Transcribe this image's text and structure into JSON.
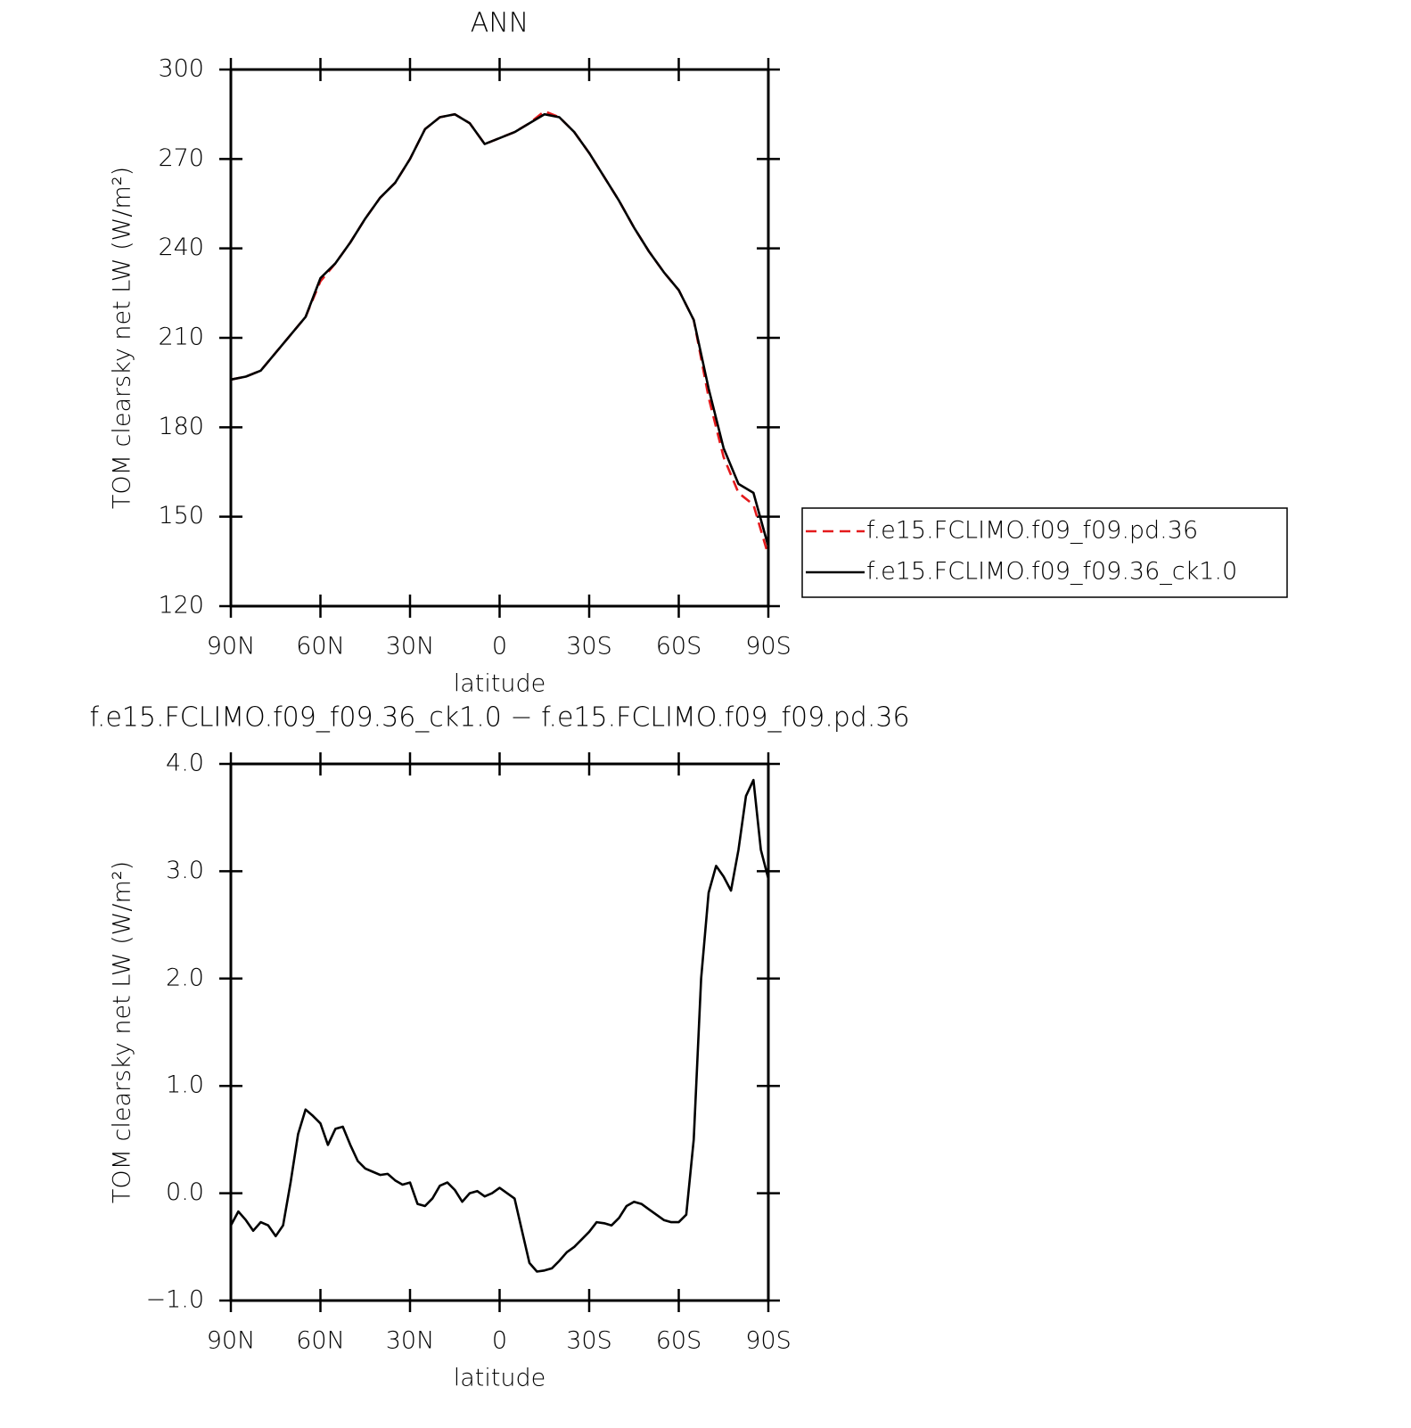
{
  "chart_data": [
    {
      "type": "line",
      "title": "ANN",
      "xlabel": "latitude",
      "ylabel": "TOM clearsky net LW (W/m²)",
      "x": [
        90,
        85,
        80,
        75,
        70,
        65,
        60,
        55,
        50,
        45,
        40,
        35,
        30,
        25,
        20,
        15,
        10,
        5,
        0,
        -5,
        -10,
        -15,
        -20,
        -25,
        -30,
        -35,
        -40,
        -45,
        -50,
        -55,
        -60,
        -65,
        -70,
        -75,
        -80,
        -85,
        -90
      ],
      "series": [
        {
          "name": "f.e15.FCLIMO.f09_f09.pd.36",
          "color": "#e41a1c",
          "style": "dashed",
          "values": [
            196,
            197,
            199,
            205,
            211,
            217,
            229,
            235,
            242,
            250,
            257,
            262,
            270,
            280,
            284,
            285,
            282,
            275,
            277,
            279,
            282,
            286,
            284,
            279,
            272,
            264,
            256,
            247,
            239,
            232,
            226,
            216,
            190,
            170,
            158,
            154,
            137
          ]
        },
        {
          "name": "f.e15.FCLIMO.f09_f09.36_ck1.0",
          "color": "#000000",
          "style": "solid",
          "values": [
            196,
            197,
            199,
            205,
            211,
            217,
            230,
            235,
            242,
            250,
            257,
            262,
            270,
            280,
            284,
            285,
            282,
            275,
            277,
            279,
            282,
            285,
            284,
            279,
            272,
            264,
            256,
            247,
            239,
            232,
            226,
            216,
            193,
            173,
            161,
            158,
            140
          ]
        }
      ],
      "xlim": [
        90,
        -90
      ],
      "xticks": [
        {
          "value": 90,
          "label": "90N"
        },
        {
          "value": 60,
          "label": "60N"
        },
        {
          "value": 30,
          "label": "30N"
        },
        0,
        {
          "value": -30,
          "label": "30S"
        },
        {
          "value": -60,
          "label": "60S"
        },
        {
          "value": -90,
          "label": "90S"
        }
      ],
      "ylim": [
        120,
        300
      ],
      "yticks": [
        120,
        150,
        180,
        210,
        240,
        270,
        300
      ],
      "legend": "outside-right"
    },
    {
      "type": "line",
      "title": "f.e15.FCLIMO.f09_f09.36_ck1.0 − f.e15.FCLIMO.f09_f09.pd.36",
      "xlabel": "latitude",
      "ylabel": "TOM clearsky net LW (W/m²)",
      "x": [
        90,
        87.5,
        85,
        82.5,
        80,
        77.5,
        75,
        72.5,
        70,
        67.5,
        65,
        62.5,
        60,
        57.5,
        55,
        52.5,
        50,
        47.5,
        45,
        42.5,
        40,
        37.5,
        35,
        32.5,
        30,
        27.5,
        25,
        22.5,
        20,
        17.5,
        15,
        12.5,
        10,
        7.5,
        5,
        2.5,
        0,
        -2.5,
        -5,
        -7.5,
        -10,
        -12.5,
        -15,
        -17.5,
        -20,
        -22.5,
        -25,
        -27.5,
        -30,
        -32.5,
        -35,
        -37.5,
        -40,
        -42.5,
        -45,
        -47.5,
        -50,
        -52.5,
        -55,
        -57.5,
        -60,
        -62.5,
        -65,
        -67.5,
        -70,
        -72.5,
        -75,
        -77.5,
        -80,
        -82.5,
        -85,
        -87.5,
        -90
      ],
      "series": [
        {
          "color": "#000000",
          "style": "solid",
          "values": [
            -0.3,
            -0.17,
            -0.25,
            -0.35,
            -0.27,
            -0.3,
            -0.4,
            -0.3,
            0.1,
            0.55,
            0.78,
            0.72,
            0.65,
            0.45,
            0.6,
            0.62,
            0.45,
            0.3,
            0.23,
            0.2,
            0.17,
            0.18,
            0.12,
            0.08,
            0.1,
            -0.1,
            -0.12,
            -0.05,
            0.07,
            0.1,
            0.03,
            -0.08,
            0,
            0.02,
            -0.03,
            0,
            0.05,
            0,
            -0.05,
            -0.35,
            -0.65,
            -0.73,
            -0.72,
            -0.7,
            -0.63,
            -0.55,
            -0.5,
            -0.43,
            -0.36,
            -0.27,
            -0.28,
            -0.3,
            -0.23,
            -0.12,
            -0.08,
            -0.1,
            -0.15,
            -0.2,
            -0.25,
            -0.27,
            -0.27,
            -0.2,
            0.5,
            2.0,
            2.8,
            3.05,
            2.95,
            2.82,
            3.2,
            3.7,
            3.85,
            3.2,
            2.93
          ]
        }
      ],
      "xlim": [
        90,
        -90
      ],
      "xticks": [
        {
          "value": 90,
          "label": "90N"
        },
        {
          "value": 60,
          "label": "60N"
        },
        {
          "value": 30,
          "label": "30N"
        },
        0,
        {
          "value": -30,
          "label": "30S"
        },
        {
          "value": -60,
          "label": "60S"
        },
        {
          "value": -90,
          "label": "90S"
        }
      ],
      "ylim": [
        -1,
        4
      ],
      "yticks": [
        {
          "value": -1,
          "label": "−1.0"
        },
        {
          "value": 0,
          "label": "0.0"
        },
        {
          "value": 1,
          "label": "1.0"
        },
        {
          "value": 2,
          "label": "2.0"
        },
        {
          "value": 3,
          "label": "3.0"
        },
        {
          "value": 4,
          "label": "4.0"
        }
      ]
    }
  ]
}
